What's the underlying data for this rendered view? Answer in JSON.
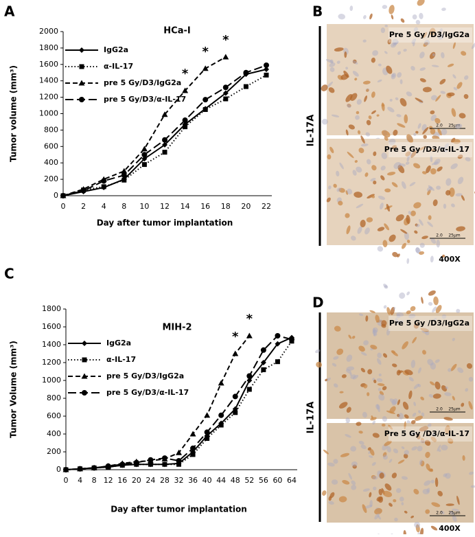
{
  "chart_data": [
    {
      "type": "line",
      "title": "HCa-I",
      "x_label": "Day after tumor implantation",
      "y_label": "Tumor volume (mm³)",
      "categories": [
        0,
        2,
        4,
        8,
        10,
        12,
        14,
        16,
        18,
        20,
        22
      ],
      "ylim": [
        0,
        2000
      ],
      "yticks": [
        0,
        200,
        400,
        600,
        800,
        1000,
        1200,
        1400,
        1600,
        1800,
        2000
      ],
      "series": [
        {
          "name": "IgG2a",
          "color": "#000000",
          "style": "solid",
          "marker": "diamond",
          "values": [
            0,
            50,
            100,
            200,
            450,
            620,
            870,
            1060,
            1250,
            1480,
            1540
          ]
        },
        {
          "name": "α-IL-17",
          "color": "#000000",
          "style": "dotted",
          "marker": "square",
          "values": [
            0,
            70,
            110,
            190,
            380,
            530,
            840,
            1050,
            1180,
            1330,
            1470
          ]
        },
        {
          "name": "pre 5 Gy/D3/IgG2a",
          "color": "#000000",
          "style": "dashed",
          "marker": "triangle",
          "values": [
            0,
            80,
            200,
            300,
            570,
            990,
            1280,
            1550,
            1690,
            null,
            null
          ]
        },
        {
          "name": "pre 5 Gy/D3/α-IL-17",
          "color": "#000000",
          "style": "longdash",
          "marker": "circle",
          "values": [
            0,
            60,
            180,
            250,
            500,
            680,
            920,
            1170,
            1320,
            1500,
            1590
          ]
        }
      ],
      "annotations": [
        {
          "x": 14,
          "label": "*"
        },
        {
          "x": 16,
          "label": "*"
        },
        {
          "x": 18,
          "label": "*"
        }
      ]
    },
    {
      "type": "line",
      "title": "MIH-2",
      "x_label": "Day after tumor  implantation",
      "y_label": "Tumor Volume (mm³)",
      "categories": [
        0,
        4,
        8,
        12,
        16,
        20,
        24,
        28,
        32,
        36,
        40,
        44,
        48,
        52,
        56,
        60,
        64
      ],
      "ylim": [
        0,
        1800
      ],
      "yticks": [
        0,
        200,
        400,
        600,
        800,
        1000,
        1200,
        1400,
        1600,
        1800
      ],
      "series": [
        {
          "name": "IgG2a",
          "color": "#000000",
          "style": "solid",
          "marker": "diamond",
          "values": [
            0,
            10,
            20,
            30,
            50,
            60,
            60,
            60,
            70,
            200,
            380,
            520,
            680,
            1000,
            1200,
            1410,
            1480
          ]
        },
        {
          "name": "α-IL-17",
          "color": "#000000",
          "style": "dotted",
          "marker": "square",
          "values": [
            0,
            10,
            20,
            30,
            50,
            60,
            60,
            60,
            60,
            170,
            350,
            500,
            640,
            900,
            1120,
            1210,
            1440
          ]
        },
        {
          "name": "pre 5 Gy/D3/IgG2a",
          "color": "#000000",
          "style": "dashed",
          "marker": "triangle",
          "values": [
            0,
            10,
            20,
            40,
            70,
            90,
            100,
            120,
            190,
            400,
            610,
            970,
            1300,
            1500,
            null,
            null,
            null
          ]
        },
        {
          "name": "pre 5 Gy/D3/α-IL-17",
          "color": "#000000",
          "style": "longdash",
          "marker": "circle",
          "values": [
            0,
            10,
            20,
            40,
            60,
            80,
            110,
            130,
            100,
            240,
            420,
            610,
            820,
            1050,
            1340,
            1500,
            1460
          ]
        }
      ],
      "annotations": [
        {
          "x": 48,
          "label": "*"
        },
        {
          "x": 52,
          "label": "*"
        }
      ]
    }
  ],
  "figure": {
    "panel_labels": [
      "A",
      "B",
      "C",
      "D"
    ],
    "image_panels": [
      {
        "side_label": "IL-17A",
        "magnification": "400X",
        "images": [
          {
            "caption": "Pre 5 Gy /D3/IgG2a",
            "scale_labels": [
              "2.0",
              "25μm"
            ]
          },
          {
            "caption": "Pre 5 Gy /D3/α-IL-17",
            "scale_labels": [
              "2.0",
              "25μm"
            ]
          }
        ]
      },
      {
        "side_label": "IL-17A",
        "magnification": "400X",
        "images": [
          {
            "caption": "Pre 5 Gy /D3/IgG2a",
            "scale_labels": [
              "2.0",
              "25μm"
            ]
          },
          {
            "caption": "Pre 5 Gy /D3/α-IL-17",
            "scale_labels": [
              "2.0",
              "25μm"
            ]
          }
        ]
      }
    ]
  }
}
